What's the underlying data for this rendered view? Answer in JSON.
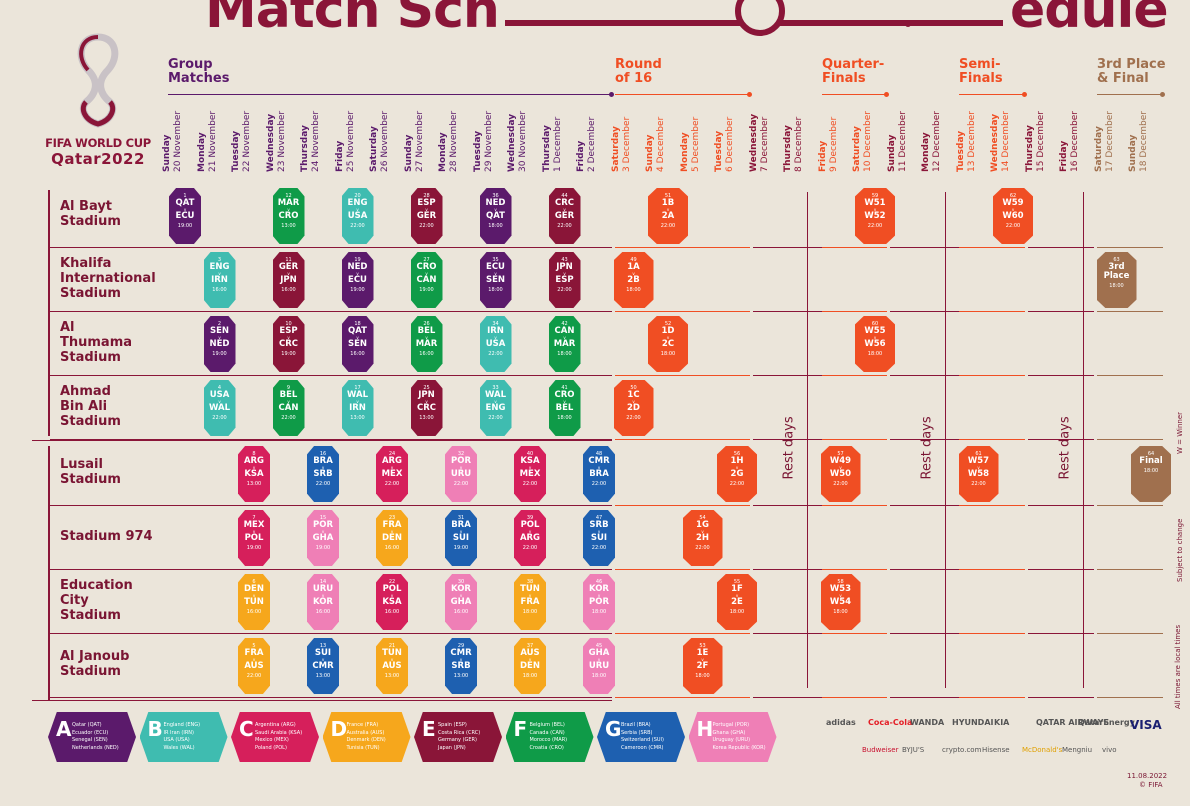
{
  "title": {
    "left": "Match Sch",
    "right": "edule"
  },
  "logo": {
    "title": "FIFA WORLD CUP",
    "sub": "Qatar2022"
  },
  "colors": {
    "maroon": "#8a1538",
    "orange": "#f04e23",
    "tan": "#a0704e",
    "purple": "#5b1a6b",
    "A": "#5b1a6b",
    "B": "#3fbcb0",
    "C": "#d61f5b",
    "D": "#f6a71c",
    "E": "#8a1538",
    "F": "#0f9b48",
    "G": "#1e60b0",
    "H": "#ef7fb6",
    "KO": "#f04e23",
    "F3": "#a0704e"
  },
  "stages": [
    {
      "label": "Group\nMatches"
    },
    {
      "label": "Round\nof 16"
    },
    {
      "label": "Quarter-\nFinals"
    },
    {
      "label": "Semi-\nFinals"
    },
    {
      "label": "3rd Place\n& Final"
    }
  ],
  "days": [
    {
      "d": "Sunday",
      "dt": "20 November"
    },
    {
      "d": "Monday",
      "dt": "21 November"
    },
    {
      "d": "Tuesday",
      "dt": "22 November"
    },
    {
      "d": "Wednesday",
      "dt": "23 November"
    },
    {
      "d": "Thursday",
      "dt": "24 November"
    },
    {
      "d": "Friday",
      "dt": "25 November"
    },
    {
      "d": "Saturday",
      "dt": "26 November"
    },
    {
      "d": "Sunday",
      "dt": "27 November"
    },
    {
      "d": "Monday",
      "dt": "28 November"
    },
    {
      "d": "Tuesday",
      "dt": "29 November"
    },
    {
      "d": "Wednesday",
      "dt": "30 November"
    },
    {
      "d": "Thursday",
      "dt": "1 December"
    },
    {
      "d": "Friday",
      "dt": "2 December"
    },
    {
      "d": "Saturday",
      "dt": "3 December"
    },
    {
      "d": "Sunday",
      "dt": "4 December"
    },
    {
      "d": "Monday",
      "dt": "5 December"
    },
    {
      "d": "Tuesday",
      "dt": "6 December"
    },
    {
      "d": "Wednesday",
      "dt": "7 December"
    },
    {
      "d": "Thursday",
      "dt": "8 December"
    },
    {
      "d": "Friday",
      "dt": "9 December"
    },
    {
      "d": "Saturday",
      "dt": "10 December"
    },
    {
      "d": "Sunday",
      "dt": "11 December"
    },
    {
      "d": "Monday",
      "dt": "12 December"
    },
    {
      "d": "Tuesday",
      "dt": "13 December"
    },
    {
      "d": "Wednesday",
      "dt": "14 December"
    },
    {
      "d": "Thursday",
      "dt": "15 December"
    },
    {
      "d": "Friday",
      "dt": "16 December"
    },
    {
      "d": "Saturday",
      "dt": "17 December"
    },
    {
      "d": "Sunday",
      "dt": "18 December"
    }
  ],
  "stadiums": [
    {
      "name": "Al Bayt\nStadium"
    },
    {
      "name": "Khalifa\nInternational\nStadium"
    },
    {
      "name": "Al\nThumama\nStadium"
    },
    {
      "name": "Ahmad\nBin Ali\nStadium"
    },
    {
      "name": "Lusail\nStadium"
    },
    {
      "name": "Stadium 974"
    },
    {
      "name": "Education\nCity\nStadium"
    },
    {
      "name": "Al Janoub\nStadium"
    }
  ],
  "rest_label": "Rest days",
  "matches": [
    {
      "n": "1",
      "a": "QAT",
      "b": "ECU",
      "t": "19:00",
      "s": 0,
      "d": 0,
      "g": "A"
    },
    {
      "n": "12",
      "a": "MAR",
      "b": "CRO",
      "t": "13:00",
      "s": 0,
      "d": 3,
      "g": "F"
    },
    {
      "n": "20",
      "a": "ENG",
      "b": "USA",
      "t": "22:00",
      "s": 0,
      "d": 5,
      "g": "B"
    },
    {
      "n": "28",
      "a": "ESP",
      "b": "GER",
      "t": "22:00",
      "s": 0,
      "d": 7,
      "g": "E"
    },
    {
      "n": "36",
      "a": "NED",
      "b": "QAT",
      "t": "18:00",
      "s": 0,
      "d": 9,
      "g": "A"
    },
    {
      "n": "44",
      "a": "CRC",
      "b": "GER",
      "t": "22:00",
      "s": 0,
      "d": 11,
      "g": "E"
    },
    {
      "n": "51",
      "a": "1B",
      "b": "2A",
      "t": "22:00",
      "s": 0,
      "d": 14,
      "g": "KO"
    },
    {
      "n": "59",
      "a": "W51",
      "b": "W52",
      "t": "22:00",
      "s": 0,
      "d": 20,
      "g": "KO"
    },
    {
      "n": "62",
      "a": "W59",
      "b": "W60",
      "t": "22:00",
      "s": 0,
      "d": 24,
      "g": "KO"
    },
    {
      "n": "3",
      "a": "ENG",
      "b": "IRN",
      "t": "16:00",
      "s": 1,
      "d": 1,
      "g": "B"
    },
    {
      "n": "11",
      "a": "GER",
      "b": "JPN",
      "t": "16:00",
      "s": 1,
      "d": 3,
      "g": "E"
    },
    {
      "n": "19",
      "a": "NED",
      "b": "ECU",
      "t": "19:00",
      "s": 1,
      "d": 5,
      "g": "A"
    },
    {
      "n": "27",
      "a": "CRO",
      "b": "CAN",
      "t": "19:00",
      "s": 1,
      "d": 7,
      "g": "F"
    },
    {
      "n": "35",
      "a": "ECU",
      "b": "SEN",
      "t": "18:00",
      "s": 1,
      "d": 9,
      "g": "A"
    },
    {
      "n": "43",
      "a": "JPN",
      "b": "ESP",
      "t": "22:00",
      "s": 1,
      "d": 11,
      "g": "E"
    },
    {
      "n": "49",
      "a": "1A",
      "b": "2B",
      "t": "18:00",
      "s": 1,
      "d": 13,
      "g": "KO"
    },
    {
      "n": "63",
      "a": "3rd",
      "b": "Place",
      "t": "18:00",
      "s": 1,
      "d": 27,
      "g": "F3"
    },
    {
      "n": "2",
      "a": "SEN",
      "b": "NED",
      "t": "19:00",
      "s": 2,
      "d": 1,
      "g": "A"
    },
    {
      "n": "10",
      "a": "ESP",
      "b": "CRC",
      "t": "19:00",
      "s": 2,
      "d": 3,
      "g": "E"
    },
    {
      "n": "18",
      "a": "QAT",
      "b": "SEN",
      "t": "16:00",
      "s": 2,
      "d": 5,
      "g": "A"
    },
    {
      "n": "26",
      "a": "BEL",
      "b": "MAR",
      "t": "16:00",
      "s": 2,
      "d": 7,
      "g": "F"
    },
    {
      "n": "34",
      "a": "IRN",
      "b": "USA",
      "t": "22:00",
      "s": 2,
      "d": 9,
      "g": "B"
    },
    {
      "n": "42",
      "a": "CAN",
      "b": "MAR",
      "t": "18:00",
      "s": 2,
      "d": 11,
      "g": "F"
    },
    {
      "n": "52",
      "a": "1D",
      "b": "2C",
      "t": "18:00",
      "s": 2,
      "d": 14,
      "g": "KO"
    },
    {
      "n": "60",
      "a": "W55",
      "b": "W56",
      "t": "18:00",
      "s": 2,
      "d": 20,
      "g": "KO"
    },
    {
      "n": "4",
      "a": "USA",
      "b": "WAL",
      "t": "22:00",
      "s": 3,
      "d": 1,
      "g": "B"
    },
    {
      "n": "9",
      "a": "BEL",
      "b": "CAN",
      "t": "22:00",
      "s": 3,
      "d": 3,
      "g": "F"
    },
    {
      "n": "17",
      "a": "WAL",
      "b": "IRN",
      "t": "13:00",
      "s": 3,
      "d": 5,
      "g": "B"
    },
    {
      "n": "25",
      "a": "JPN",
      "b": "CRC",
      "t": "13:00",
      "s": 3,
      "d": 7,
      "g": "E"
    },
    {
      "n": "33",
      "a": "WAL",
      "b": "ENG",
      "t": "22:00",
      "s": 3,
      "d": 9,
      "g": "B"
    },
    {
      "n": "41",
      "a": "CRO",
      "b": "BEL",
      "t": "18:00",
      "s": 3,
      "d": 11,
      "g": "F"
    },
    {
      "n": "50",
      "a": "1C",
      "b": "2D",
      "t": "22:00",
      "s": 3,
      "d": 13,
      "g": "KO"
    },
    {
      "n": "8",
      "a": "ARG",
      "b": "KSA",
      "t": "13:00",
      "s": 4,
      "d": 2,
      "g": "C"
    },
    {
      "n": "16",
      "a": "BRA",
      "b": "SRB",
      "t": "22:00",
      "s": 4,
      "d": 4,
      "g": "G"
    },
    {
      "n": "24",
      "a": "ARG",
      "b": "MEX",
      "t": "22:00",
      "s": 4,
      "d": 6,
      "g": "C"
    },
    {
      "n": "32",
      "a": "POR",
      "b": "URU",
      "t": "22:00",
      "s": 4,
      "d": 8,
      "g": "H"
    },
    {
      "n": "40",
      "a": "KSA",
      "b": "MEX",
      "t": "22:00",
      "s": 4,
      "d": 10,
      "g": "C"
    },
    {
      "n": "48",
      "a": "CMR",
      "b": "BRA",
      "t": "22:00",
      "s": 4,
      "d": 12,
      "g": "G"
    },
    {
      "n": "56",
      "a": "1H",
      "b": "2G",
      "t": "22:00",
      "s": 4,
      "d": 16,
      "g": "KO"
    },
    {
      "n": "57",
      "a": "W49",
      "b": "W50",
      "t": "22:00",
      "s": 4,
      "d": 19,
      "g": "KO"
    },
    {
      "n": "61",
      "a": "W57",
      "b": "W58",
      "t": "22:00",
      "s": 4,
      "d": 23,
      "g": "KO"
    },
    {
      "n": "64",
      "a": "Final",
      "b": "",
      "t": "18:00",
      "s": 4,
      "d": 28,
      "g": "F3"
    },
    {
      "n": "7",
      "a": "MEX",
      "b": "POL",
      "t": "19:00",
      "s": 5,
      "d": 2,
      "g": "C"
    },
    {
      "n": "15",
      "a": "POR",
      "b": "GHA",
      "t": "19:00",
      "s": 5,
      "d": 4,
      "g": "H"
    },
    {
      "n": "23",
      "a": "FRA",
      "b": "DEN",
      "t": "16:00",
      "s": 5,
      "d": 6,
      "g": "D"
    },
    {
      "n": "31",
      "a": "BRA",
      "b": "SUI",
      "t": "19:00",
      "s": 5,
      "d": 8,
      "g": "G"
    },
    {
      "n": "39",
      "a": "POL",
      "b": "ARG",
      "t": "22:00",
      "s": 5,
      "d": 10,
      "g": "C"
    },
    {
      "n": "47",
      "a": "SRB",
      "b": "SUI",
      "t": "22:00",
      "s": 5,
      "d": 12,
      "g": "G"
    },
    {
      "n": "54",
      "a": "1G",
      "b": "2H",
      "t": "22:00",
      "s": 5,
      "d": 15,
      "g": "KO"
    },
    {
      "n": "6",
      "a": "DEN",
      "b": "TUN",
      "t": "16:00",
      "s": 6,
      "d": 2,
      "g": "D"
    },
    {
      "n": "14",
      "a": "URU",
      "b": "KOR",
      "t": "16:00",
      "s": 6,
      "d": 4,
      "g": "H"
    },
    {
      "n": "22",
      "a": "POL",
      "b": "KSA",
      "t": "16:00",
      "s": 6,
      "d": 6,
      "g": "C"
    },
    {
      "n": "30",
      "a": "KOR",
      "b": "GHA",
      "t": "16:00",
      "s": 6,
      "d": 8,
      "g": "H"
    },
    {
      "n": "38",
      "a": "TUN",
      "b": "FRA",
      "t": "18:00",
      "s": 6,
      "d": 10,
      "g": "D"
    },
    {
      "n": "46",
      "a": "KOR",
      "b": "POR",
      "t": "18:00",
      "s": 6,
      "d": 12,
      "g": "H"
    },
    {
      "n": "55",
      "a": "1F",
      "b": "2E",
      "t": "18:00",
      "s": 6,
      "d": 16,
      "g": "KO"
    },
    {
      "n": "58",
      "a": "W53",
      "b": "W54",
      "t": "18:00",
      "s": 6,
      "d": 19,
      "g": "KO"
    },
    {
      "n": "5",
      "a": "FRA",
      "b": "AUS",
      "t": "22:00",
      "s": 7,
      "d": 2,
      "g": "D"
    },
    {
      "n": "13",
      "a": "SUI",
      "b": "CMR",
      "t": "13:00",
      "s": 7,
      "d": 4,
      "g": "G"
    },
    {
      "n": "21",
      "a": "TUN",
      "b": "AUS",
      "t": "13:00",
      "s": 7,
      "d": 6,
      "g": "D"
    },
    {
      "n": "29",
      "a": "CMR",
      "b": "SRB",
      "t": "13:00",
      "s": 7,
      "d": 8,
      "g": "G"
    },
    {
      "n": "37",
      "a": "AUS",
      "b": "DEN",
      "t": "18:00",
      "s": 7,
      "d": 10,
      "g": "D"
    },
    {
      "n": "45",
      "a": "GHA",
      "b": "URU",
      "t": "18:00",
      "s": 7,
      "d": 12,
      "g": "H"
    },
    {
      "n": "53",
      "a": "1E",
      "b": "2F",
      "t": "18:00",
      "s": 7,
      "d": 15,
      "g": "KO"
    }
  ],
  "groups": [
    {
      "letter": "A",
      "teams": [
        "Qatar (QAT)",
        "Ecuador (ECU)",
        "Senegal (SEN)",
        "Netherlands (NED)"
      ]
    },
    {
      "letter": "B",
      "teams": [
        "England (ENG)",
        "IR Iran (IRN)",
        "USA (USA)",
        "Wales (WAL)"
      ]
    },
    {
      "letter": "C",
      "teams": [
        "Argentina (ARG)",
        "Saudi Arabia (KSA)",
        "Mexico (MEX)",
        "Poland (POL)"
      ]
    },
    {
      "letter": "D",
      "teams": [
        "France (FRA)",
        "Australia (AUS)",
        "Denmark (DEN)",
        "Tunisia (TUN)"
      ]
    },
    {
      "letter": "E",
      "teams": [
        "Spain (ESP)",
        "Costa Rica (CRC)",
        "Germany (GER)",
        "Japan (JPN)"
      ]
    },
    {
      "letter": "F",
      "teams": [
        "Belgium (BEL)",
        "Canada (CAN)",
        "Morocco (MAR)",
        "Croatia (CRO)"
      ]
    },
    {
      "letter": "G",
      "teams": [
        "Brazil (BRA)",
        "Serbia (SRB)",
        "Switzerland (SUI)",
        "Cameroon (CMR)"
      ]
    },
    {
      "letter": "H",
      "teams": [
        "Portugal (POR)",
        "Ghana (GHA)",
        "Uruguay (URU)",
        "Korea Republic (KOR)"
      ]
    }
  ],
  "sponsors_row1": [
    "adidas",
    "Coca-Cola",
    "WANDA",
    "HYUNDAI",
    "KIA",
    "QATAR AIRWAYS",
    "QatarEnergy",
    "VISA"
  ],
  "sponsors_row2": [
    "Budweiser",
    "BYJU'S",
    "crypto.com",
    "Hisense",
    "McDonald's",
    "Mengniu",
    "vivo"
  ],
  "notes": {
    "winner": "W = Winner",
    "subject": "Subject to change",
    "local": "All times are local times"
  },
  "footer": {
    "date": "11.08.2022",
    "copy": "© FIFA"
  }
}
